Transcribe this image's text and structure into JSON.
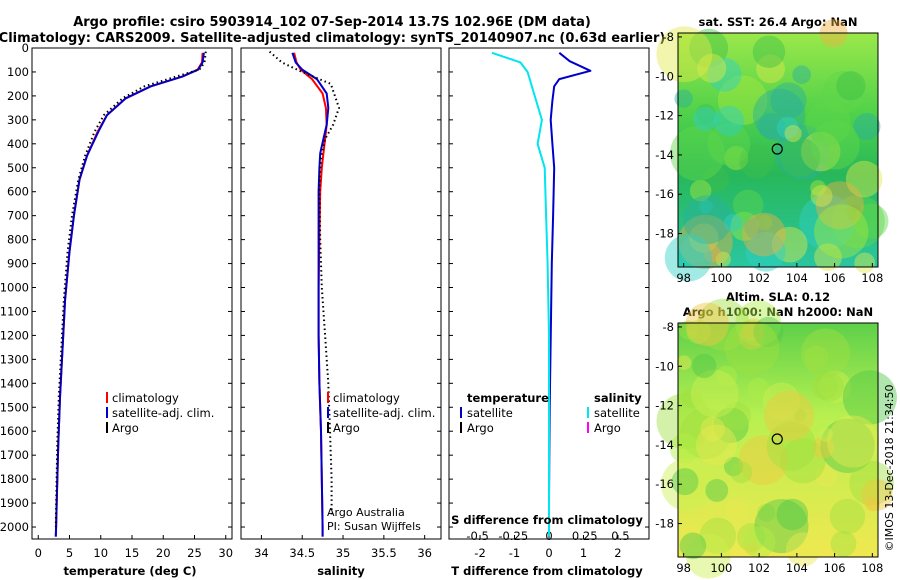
{
  "title_line1": "Argo profile: csiro 5903914_102 07-Sep-2014 13.7S 102.96E (DM data)",
  "title_line2": "Climatology: CARS2009. Satellite-adjusted climatology: synTS_20140907.nc (0.63d earlier)",
  "colors": {
    "climatology": "#ff0000",
    "satellite": "#0000cc",
    "argo": "#000000",
    "sal_satellite": "#00e5ee",
    "sal_argo": "#ff00ff"
  },
  "depth_ticks": [
    0,
    100,
    200,
    300,
    400,
    500,
    600,
    700,
    800,
    900,
    1000,
    1100,
    1200,
    1300,
    1400,
    1500,
    1600,
    1700,
    1800,
    1900,
    2000
  ],
  "chart_data": [
    {
      "type": "line",
      "id": "temperature",
      "xlabel": "temperature (deg C)",
      "ylabel": "depth",
      "xlim": [
        -1,
        31
      ],
      "ylim": [
        2050,
        0
      ],
      "xticks": [
        "0",
        "5",
        "10",
        "15",
        "20",
        "25",
        "30"
      ],
      "legend": [
        "climatology",
        "satellite-adj. clim.",
        "Argo"
      ],
      "series": [
        {
          "name": "climatology",
          "x": [
            26.3,
            26.2,
            25.5,
            23,
            18,
            14,
            11,
            9.5,
            7.8,
            6.6,
            5.7,
            5.0,
            4.3,
            3.9,
            3.5,
            3.2,
            3.0,
            2.85,
            2.8
          ],
          "depth": [
            20,
            60,
            90,
            120,
            160,
            210,
            280,
            350,
            450,
            550,
            700,
            850,
            1050,
            1250,
            1450,
            1650,
            1850,
            2000,
            2040
          ]
        },
        {
          "name": "satellite-adj. clim.",
          "x": [
            26.5,
            26.3,
            25.6,
            23,
            18,
            14,
            11,
            9.6,
            7.8,
            6.6,
            5.7,
            5.0,
            4.3,
            3.9,
            3.5,
            3.2,
            3.0,
            2.85,
            2.8
          ],
          "depth": [
            20,
            60,
            90,
            120,
            160,
            210,
            280,
            350,
            450,
            550,
            700,
            850,
            1050,
            1250,
            1450,
            1650,
            1850,
            2000,
            2040
          ]
        },
        {
          "name": "Argo",
          "x": [
            26.8,
            26.6,
            25.8,
            22,
            17,
            13.5,
            10.5,
            9,
            7.5,
            6.4,
            5.4,
            4.7,
            4.1,
            3.7,
            3.3,
            3.05,
            2.9,
            2.8
          ],
          "depth": [
            15,
            60,
            90,
            120,
            160,
            210,
            280,
            350,
            450,
            550,
            700,
            850,
            1050,
            1250,
            1450,
            1650,
            1850,
            2000
          ]
        }
      ]
    },
    {
      "type": "line",
      "id": "salinity",
      "xlabel": "salinity",
      "ylabel": "depth",
      "xlim": [
        33.75,
        36.2
      ],
      "ylim": [
        2050,
        0
      ],
      "xticks": [
        "34",
        "34.5",
        "35",
        "35.5",
        "36"
      ],
      "legend": [
        "climatology",
        "satellite-adj. clim.",
        "Argo"
      ],
      "credit": [
        "Argo Australia",
        "PI: Susan Wijffels"
      ],
      "series": [
        {
          "name": "climatology",
          "x": [
            34.4,
            34.43,
            34.48,
            34.62,
            34.75,
            34.79,
            34.8,
            34.78,
            34.76,
            34.74,
            34.72,
            34.71,
            34.7,
            34.7,
            34.71,
            34.73,
            34.74,
            34.75,
            34.75
          ],
          "depth": [
            20,
            60,
            90,
            130,
            190,
            250,
            320,
            380,
            440,
            500,
            600,
            800,
            1000,
            1200,
            1400,
            1600,
            1800,
            2000,
            2040
          ]
        },
        {
          "name": "satellite-adj. clim.",
          "x": [
            34.38,
            34.42,
            34.5,
            34.68,
            34.8,
            34.82,
            34.8,
            34.76,
            34.72,
            34.71,
            34.7,
            34.7,
            34.7,
            34.7,
            34.71,
            34.73,
            34.74,
            34.75,
            34.75
          ],
          "depth": [
            20,
            60,
            90,
            130,
            190,
            250,
            320,
            380,
            440,
            500,
            600,
            800,
            1000,
            1200,
            1400,
            1600,
            1800,
            2000,
            2040
          ]
        },
        {
          "name": "Argo",
          "x": [
            34.1,
            34.25,
            34.5,
            34.85,
            34.9,
            34.95,
            34.88,
            34.78,
            34.74,
            34.72,
            34.71,
            34.72,
            34.74,
            34.78,
            34.82,
            34.84,
            34.86,
            34.86
          ],
          "depth": [
            15,
            60,
            100,
            150,
            200,
            250,
            320,
            380,
            440,
            500,
            600,
            800,
            1000,
            1200,
            1400,
            1600,
            1800,
            1950
          ]
        }
      ]
    },
    {
      "type": "line",
      "id": "difference",
      "xlabel": "T difference from climatology",
      "ylabel": "depth",
      "xlim": [
        -2.9,
        2.9
      ],
      "ylim": [
        2050,
        0
      ],
      "xticks": [
        "-2",
        "-1",
        "0",
        "1",
        "2"
      ],
      "top_xlabel": "S difference from climatology",
      "top_xticks": [
        "-0.5",
        "-0.25",
        "0",
        "0.25",
        "0.5"
      ],
      "legend_left_title": "temperature",
      "legend_right_title": "salinity",
      "legend_left": [
        "satellite",
        "Argo"
      ],
      "legend_right": [
        "satellite",
        "Argo"
      ],
      "series": [
        {
          "name": "T satellite",
          "x": [
            0.3,
            0.6,
            1.2,
            0.3,
            0.15,
            0.1,
            0.05,
            0.1,
            0.15,
            0.12,
            0.08,
            0.06,
            0.04,
            0.02,
            0.01,
            0,
            0
          ],
          "depth": [
            20,
            55,
            95,
            130,
            160,
            220,
            300,
            400,
            500,
            700,
            900,
            1100,
            1300,
            1500,
            1700,
            1900,
            2040
          ]
        },
        {
          "name": "S satellite",
          "x": [
            -0.4,
            -0.2,
            -0.15,
            -0.1,
            -0.05,
            -0.08,
            -0.03,
            -0.02,
            -0.01,
            0,
            0,
            0,
            0
          ],
          "depth": [
            20,
            60,
            100,
            200,
            300,
            400,
            500,
            700,
            900,
            1200,
            1500,
            1800,
            2040
          ]
        }
      ]
    },
    {
      "type": "heatmap",
      "id": "sst_map",
      "title": "sat. SST: 26.4 Argo: NaN",
      "xticks": [
        "98",
        "100",
        "102",
        "104",
        "106",
        "108"
      ],
      "yticks": [
        "-8",
        "-10",
        "-12",
        "-14",
        "-16",
        "-18"
      ],
      "xlim": [
        97.7,
        108.3
      ],
      "ylim": [
        -19.7,
        -7.8
      ],
      "marker": {
        "lon": 102.96,
        "lat": -13.7
      }
    },
    {
      "type": "heatmap",
      "id": "sla_map",
      "title_line1": "Altim. SLA: 0.12",
      "title_line2": "Argo h1000: NaN h2000: NaN",
      "xticks": [
        "98",
        "100",
        "102",
        "104",
        "106",
        "108"
      ],
      "yticks": [
        "-8",
        "-10",
        "-12",
        "-14",
        "-16",
        "-18"
      ],
      "xlim": [
        97.7,
        108.3
      ],
      "ylim": [
        -19.7,
        -7.8
      ],
      "marker": {
        "lon": 102.96,
        "lat": -13.7
      }
    }
  ],
  "watermark": "©IMOS 13-Dec-2018 21:34:50"
}
